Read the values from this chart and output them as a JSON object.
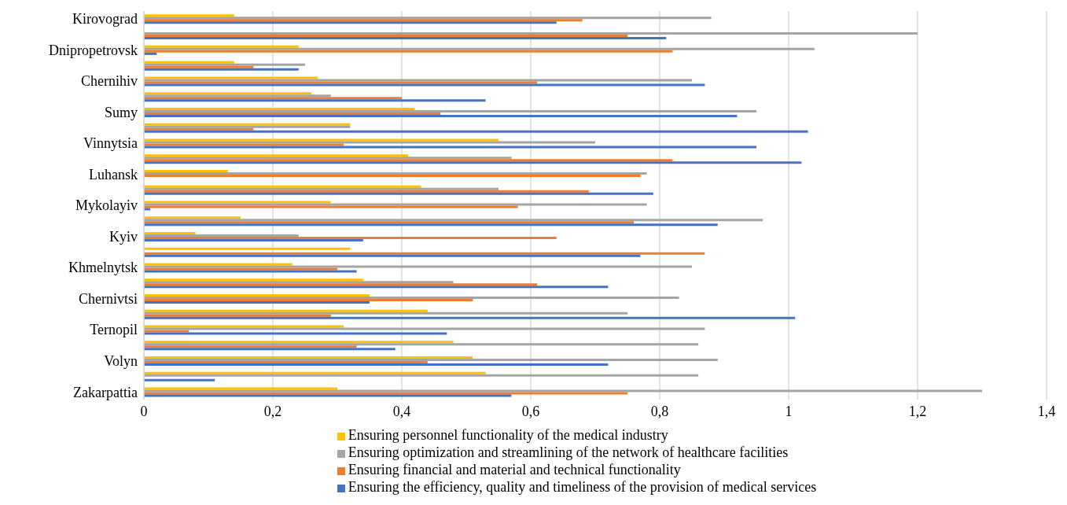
{
  "chart_data": {
    "type": "bar",
    "orientation": "horizontal",
    "categories": [
      "Kirovograd",
      null,
      "Dnipropetrovsk",
      null,
      "Chernihiv",
      null,
      "Sumy",
      null,
      "Vinnytsia",
      null,
      "Luhansk",
      null,
      "Mykolayiv",
      null,
      "Kyiv",
      null,
      "Khmelnytsk",
      null,
      "Chernivtsi",
      null,
      "Ternopil",
      null,
      "Volyn",
      null,
      "Zakarpattia"
    ],
    "series": [
      {
        "name": "Ensuring personnel functionality of the medical industry",
        "color": "#ffc000",
        "values": [
          0.14,
          0,
          0.24,
          0.14,
          0.27,
          0.26,
          0.42,
          0.32,
          0.55,
          0.41,
          0.13,
          0.43,
          0.29,
          0.15,
          0.08,
          0.32,
          0.23,
          0.34,
          0.35,
          0.44,
          0.31,
          0.48,
          0.51,
          0.53,
          0.3
        ]
      },
      {
        "name": "Ensuring optimization and streamlining of the network of healthcare facilities",
        "color": "#a5a5a5",
        "values": [
          0.88,
          1.2,
          1.04,
          0.25,
          0.85,
          0.29,
          0.95,
          0.32,
          0.7,
          0.57,
          0.78,
          0.55,
          0.78,
          0.96,
          0.24,
          0,
          0.85,
          0.48,
          0.83,
          0.75,
          0.87,
          0.86,
          0.89,
          0.86,
          1.3
        ]
      },
      {
        "name": "Ensuring financial and material and technical functionality",
        "color": "#ed7d31",
        "values": [
          0.68,
          0.75,
          0.82,
          0.17,
          0.61,
          0.4,
          0.46,
          0.17,
          0.31,
          0.82,
          0.77,
          0.69,
          0.58,
          0.76,
          0.64,
          0.87,
          0.3,
          0.61,
          0.51,
          0.29,
          0.07,
          0.33,
          0.44,
          0,
          0.75
        ]
      },
      {
        "name": "Ensuring the efficiency, quality and timeliness of the provision of medical services",
        "color": "#4472c4",
        "values": [
          0.64,
          0.81,
          0.02,
          0.24,
          0.87,
          0.53,
          0.92,
          1.03,
          0.95,
          1.02,
          0,
          0.79,
          0.01,
          0.89,
          0.34,
          0.77,
          0.33,
          0.72,
          0.35,
          1.01,
          0.47,
          0.39,
          0.72,
          0.11,
          0.57
        ]
      }
    ],
    "xlim": [
      0,
      1.4
    ],
    "xticks": [
      0,
      {
        "value": 0.2,
        "label": "0,2"
      },
      {
        "value": 0.4,
        "label": "0,4"
      },
      {
        "value": 0.6,
        "label": "0,6"
      },
      {
        "value": 0.8,
        "label": "0,8"
      },
      1,
      {
        "value": 1.2,
        "label": "1,2"
      },
      {
        "value": 1.4,
        "label": "1,4"
      }
    ],
    "grid": "x",
    "legend": "bottom"
  }
}
